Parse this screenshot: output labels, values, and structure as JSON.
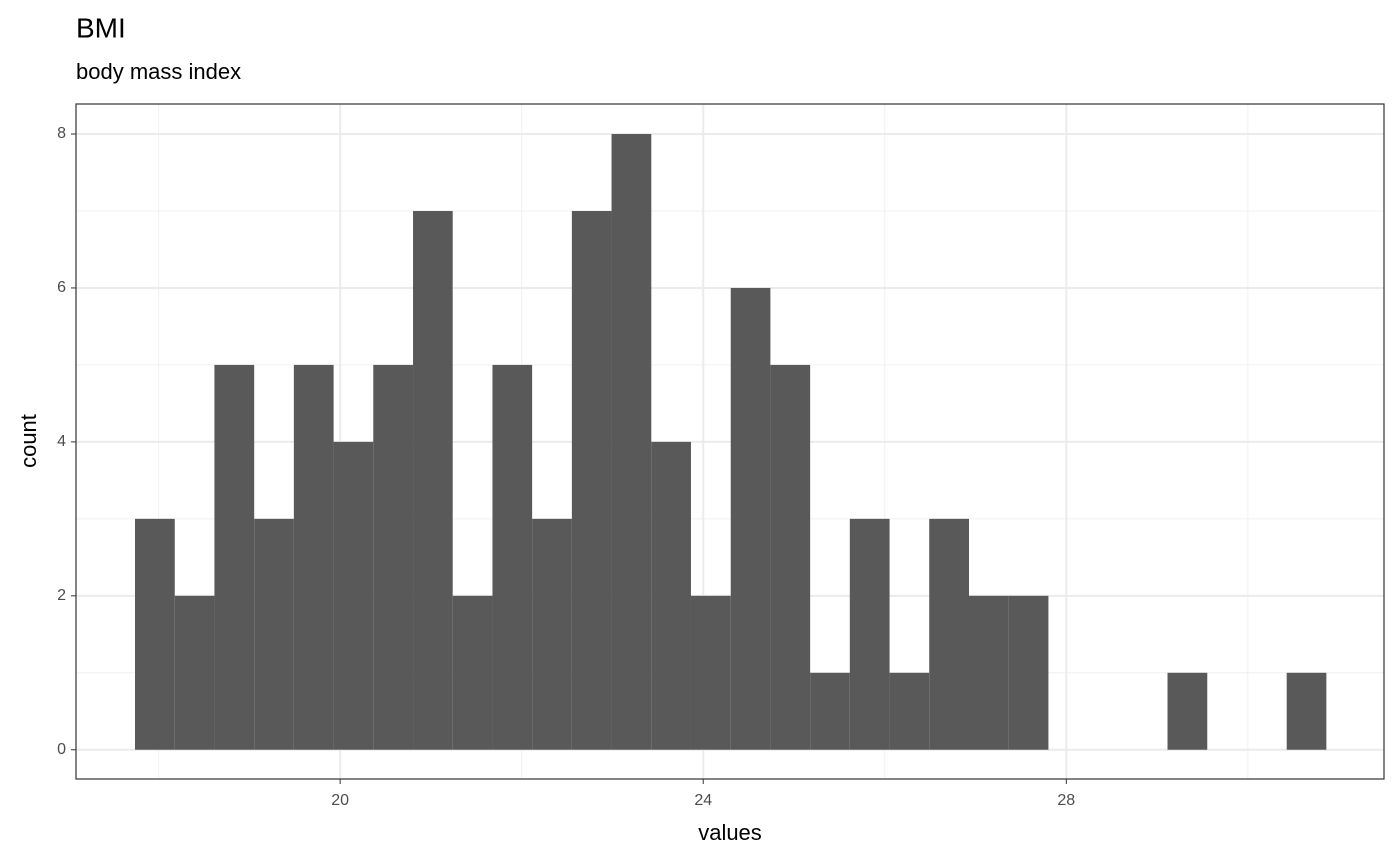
{
  "chart_data": {
    "type": "histogram",
    "title": "BMI",
    "subtitle": "body mass index",
    "x_label": "values",
    "y_label": "count",
    "bins": [
      17.74,
      18.178,
      18.615,
      19.053,
      19.49,
      19.928,
      20.365,
      20.803,
      21.24,
      21.678,
      22.115,
      22.553,
      22.99,
      23.428,
      23.865,
      24.303,
      24.74,
      25.178,
      25.615,
      26.053,
      26.49,
      26.928,
      27.365,
      27.803,
      28.24,
      28.678,
      29.115,
      29.553,
      29.99,
      30.428,
      30.865
    ],
    "values": [
      3,
      2,
      5,
      3,
      5,
      4,
      5,
      7,
      2,
      5,
      3,
      7,
      8,
      4,
      2,
      6,
      5,
      1,
      3,
      1,
      3,
      2,
      2,
      0,
      0,
      0,
      1,
      0,
      0,
      1
    ],
    "color": "#595959",
    "xlim": [
      17.09,
      31.5
    ],
    "xticks": [
      20,
      24,
      28
    ],
    "xminor": [
      18,
      22,
      26,
      30
    ],
    "ylim": [
      -0.38,
      8.39
    ],
    "yticks": [
      0,
      2,
      4,
      6,
      8
    ],
    "yminor": [
      1,
      3,
      5,
      7
    ],
    "grid": true
  }
}
